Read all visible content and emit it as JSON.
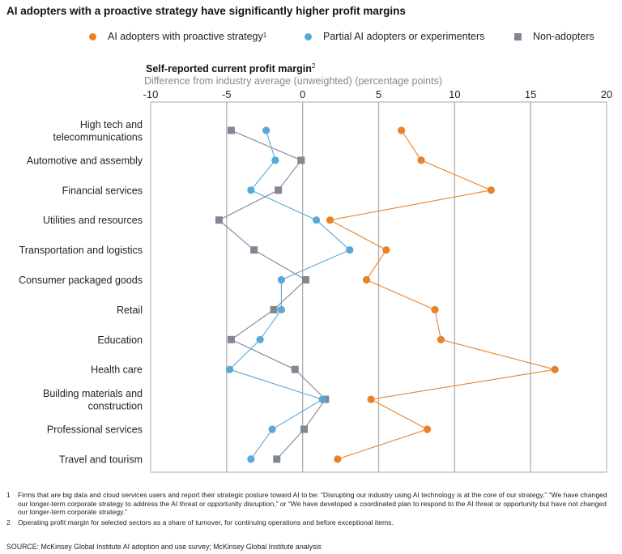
{
  "title": "AI adopters with a proactive strategy have significantly higher profit margins",
  "colors": {
    "proactive": "#e8822a",
    "partial": "#5aa8d6",
    "non": "#7f8893",
    "gridline": "#b0b0b0",
    "frame": "#aaaaaa"
  },
  "legend": [
    {
      "label": "AI adopters with proactive strategy",
      "sup": "1",
      "shape": "circle",
      "color": "#e8822a"
    },
    {
      "label": "Partial AI adopters or experimenters",
      "sup": "",
      "shape": "circle",
      "color": "#5aa8d6"
    },
    {
      "label": "Non-adopters",
      "sup": "",
      "shape": "square",
      "color": "#7f8893"
    }
  ],
  "subtitle": "Self-reported current profit margin",
  "subtitle_sup": "2",
  "subtitle2": "Difference from industry average (unweighted) (percentage points)",
  "chart_data": {
    "type": "line",
    "orientation": "horizontal-dot-plot",
    "categories": [
      [
        "High tech and",
        "telecommunications"
      ],
      [
        "Automotive and assembly"
      ],
      [
        "Financial services"
      ],
      [
        "Utilities and resources"
      ],
      [
        "Transportation and logistics"
      ],
      [
        "Consumer packaged goods"
      ],
      [
        "Retail"
      ],
      [
        "Education"
      ],
      [
        "Health care"
      ],
      [
        "Building materials and",
        "construction"
      ],
      [
        "Professional services"
      ],
      [
        "Travel and tourism"
      ]
    ],
    "xlim": [
      -10,
      20
    ],
    "xticks": [
      -10,
      -5,
      0,
      5,
      10,
      15,
      20
    ],
    "xtick_labels": [
      "-10",
      "-5",
      "0",
      "5",
      "10",
      "15",
      "20"
    ],
    "gridlines_at": [
      -5,
      0,
      5,
      10,
      15
    ],
    "series": [
      {
        "name": "Non-adopters",
        "key": "non",
        "marker": "square",
        "values": [
          -4.7,
          -0.1,
          -1.6,
          -5.5,
          -3.2,
          0.2,
          -1.9,
          -4.7,
          -0.5,
          1.5,
          0.1,
          -1.7
        ]
      },
      {
        "name": "Partial AI adopters or experimenters",
        "key": "partial",
        "marker": "circle",
        "values": [
          -2.4,
          -1.8,
          -3.4,
          0.9,
          3.1,
          -1.4,
          -1.4,
          -2.8,
          -4.8,
          1.3,
          -2.0,
          -3.4
        ]
      },
      {
        "name": "AI adopters with proactive strategy",
        "key": "proactive",
        "marker": "circle",
        "values": [
          6.5,
          7.8,
          12.4,
          1.8,
          5.5,
          4.2,
          8.7,
          9.1,
          16.6,
          4.5,
          8.2,
          2.3
        ]
      }
    ]
  },
  "footnotes": [
    {
      "num": "1",
      "text": "Firms that are big data and cloud services users and report their strategic posture toward AI to be: “Disrupting our industry using AI technology is at the core of our strategy,” “We have changed our longer-term corporate strategy to address the AI threat or opportunity disruption,” or “We have developed a coordinated plan to respond to the AI threat or opportunity but have not changed our longer-term corporate strategy.”"
    },
    {
      "num": "2",
      "text": "Operating profit margin for selected sectors as a share of turnover, for continuing operations and before exceptional items."
    }
  ],
  "source": "SOURCE:  McKinsey Global Institute AI adoption and use survey; McKinsey Global Institute analysis"
}
